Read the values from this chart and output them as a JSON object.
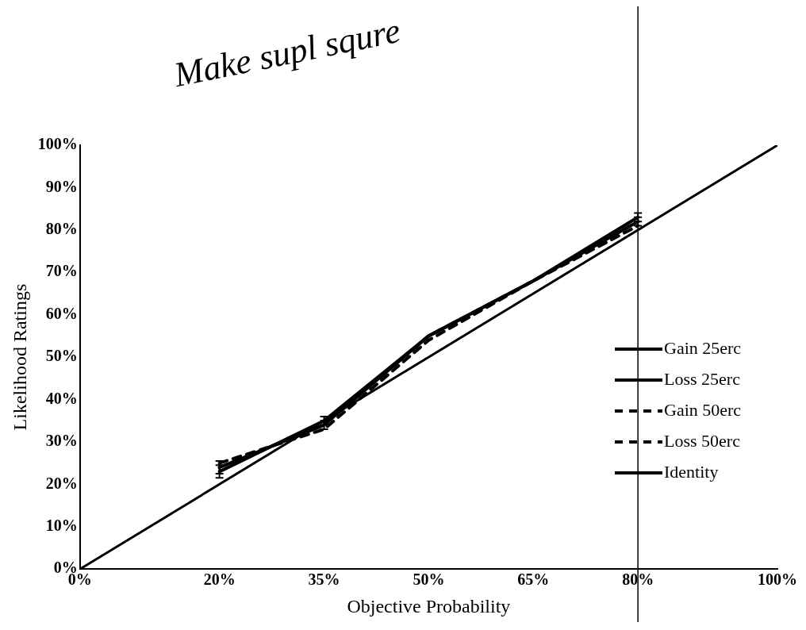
{
  "chart_data": {
    "type": "line",
    "xlabel": "Objective Probability",
    "ylabel": "Likelihood Ratings",
    "annotations": [
      "Make supl squre"
    ],
    "x": [
      20,
      35,
      50,
      65,
      80
    ],
    "series": [
      {
        "name": "Gain 25erc",
        "color": "#000000",
        "values": [
          24,
          34,
          55,
          68,
          82
        ],
        "errors": [
          1.5,
          1,
          null,
          null,
          1
        ]
      },
      {
        "name": "Loss 25erc",
        "color": "#000000",
        "values": [
          23,
          35,
          55,
          68,
          83
        ],
        "errors": [
          1.5,
          1,
          null,
          null,
          1
        ]
      },
      {
        "name": "Gain 50erc",
        "color": "#000000",
        "values": [
          25,
          33,
          54,
          68,
          82
        ],
        "line_style": "dashed"
      },
      {
        "name": "Loss 50erc",
        "color": "#000000",
        "values": [
          24,
          34,
          55,
          68,
          81
        ],
        "line_style": "dashed"
      },
      {
        "name": "Identity",
        "color": "#000000",
        "x": [
          0,
          100
        ],
        "values": [
          0,
          100
        ]
      }
    ],
    "xlim": [
      0,
      100
    ],
    "ylim": [
      0,
      100
    ],
    "xticks": [
      {
        "value": 0,
        "label": "0%"
      },
      {
        "value": 20,
        "label": "20%"
      },
      {
        "value": 35,
        "label": "35%"
      },
      {
        "value": 50,
        "label": "50%"
      },
      {
        "value": 65,
        "label": "65%"
      },
      {
        "value": 80,
        "label": "80%"
      },
      {
        "value": 100,
        "label": "100%"
      }
    ],
    "yticks": [
      {
        "value": 0,
        "label": "0%"
      },
      {
        "value": 10,
        "label": "10%"
      },
      {
        "value": 20,
        "label": "20%"
      },
      {
        "value": 30,
        "label": "30%"
      },
      {
        "value": 40,
        "label": "40%"
      },
      {
        "value": 50,
        "label": "50%"
      },
      {
        "value": 60,
        "label": "60%"
      },
      {
        "value": 70,
        "label": "70%"
      },
      {
        "value": 80,
        "label": "80%"
      },
      {
        "value": 90,
        "label": "90%"
      },
      {
        "value": 100,
        "label": "100%"
      }
    ],
    "ref_lines": [
      {
        "axis": "x",
        "value": 80,
        "color": "#000000"
      }
    ],
    "grid": false,
    "legend": "right",
    "line_style": "solid"
  }
}
